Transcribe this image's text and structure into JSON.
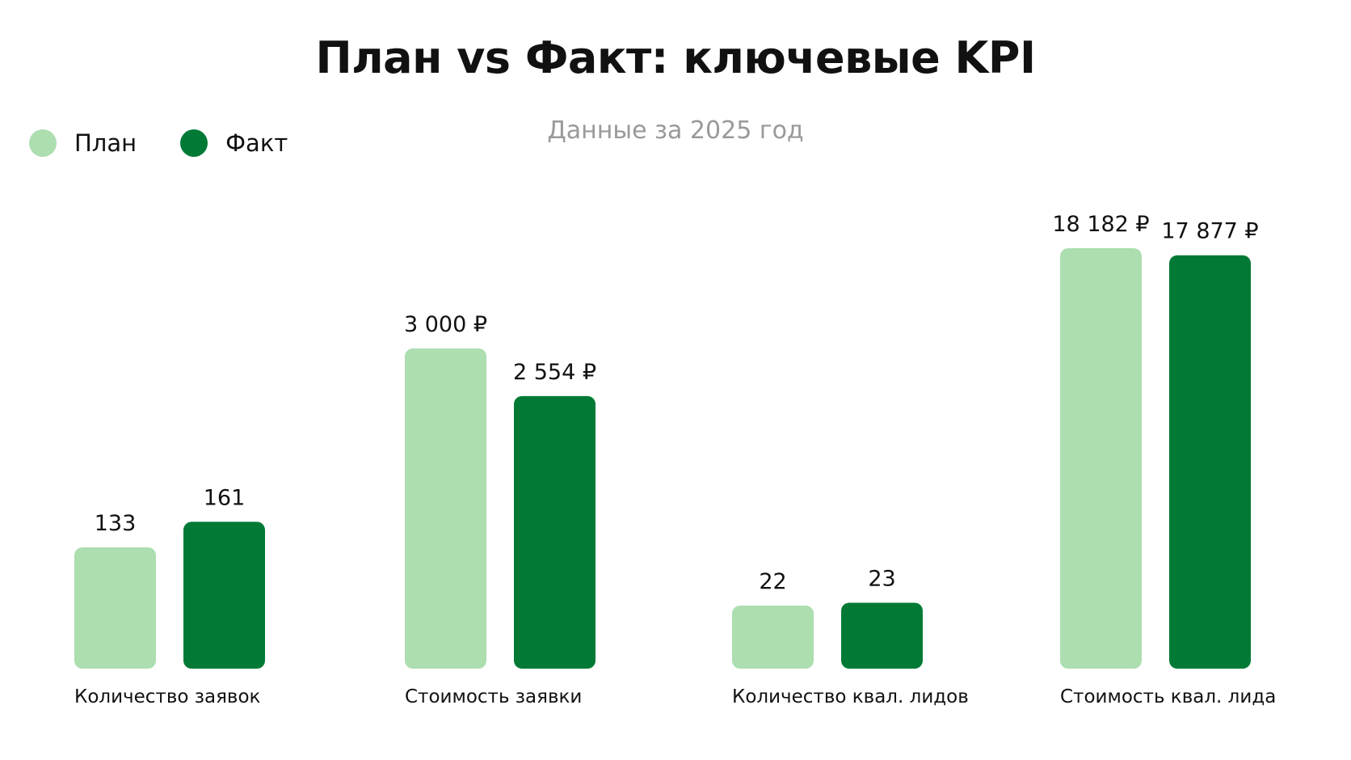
{
  "chart_data": {
    "type": "bar",
    "title": "План vs Факт: ключевые KPI",
    "subtitle": "Данные за 2025 год",
    "legend_position": "top-left",
    "grid": false,
    "categories": [
      "Количество заявок",
      "Стоимость заявки",
      "Количество квал. лидов",
      "Стоимость квал. лида"
    ],
    "series": [
      {
        "name": "План",
        "color": "#acdeb0",
        "values": [
          133,
          3000,
          22,
          18182
        ],
        "labels": [
          "133",
          "3 000 ₽",
          "22",
          "18 182 ₽"
        ]
      },
      {
        "name": "Факт",
        "color": "#027a36",
        "values": [
          161,
          2554,
          23,
          17877
        ],
        "labels": [
          "161",
          "2 554 ₽",
          "23",
          "17 877 ₽"
        ]
      }
    ]
  }
}
